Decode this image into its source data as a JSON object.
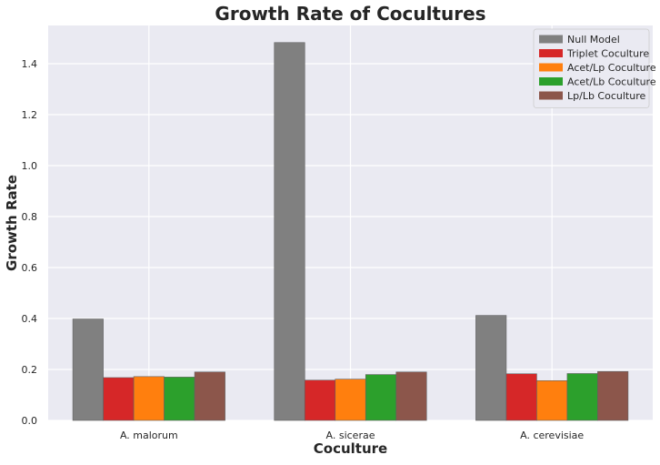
{
  "chart_data": {
    "type": "bar",
    "title": "Growth Rate of Cocultures",
    "xlabel": "Coculture",
    "ylabel": "Growth Rate",
    "categories": [
      "A. malorum",
      "A. sicerae",
      "A. cerevisiae"
    ],
    "ylim": [
      0,
      1.55
    ],
    "yticks": [
      0.0,
      0.2,
      0.4,
      0.6,
      0.8,
      1.0,
      1.2,
      1.4
    ],
    "ytick_labels": [
      "0.0",
      "0.2",
      "0.4",
      "0.6",
      "0.8",
      "1.0",
      "1.2",
      "1.4"
    ],
    "grid": true,
    "legend_position": "top-right",
    "series": [
      {
        "name": "Null Model",
        "color": "#808080",
        "values": [
          0.398,
          1.483,
          0.412
        ]
      },
      {
        "name": "Triplet Coculture",
        "color": "#d62728",
        "values": [
          0.168,
          0.158,
          0.183
        ]
      },
      {
        "name": "Acet/Lp Coculture",
        "color": "#ff7f0e",
        "values": [
          0.172,
          0.162,
          0.156
        ]
      },
      {
        "name": "Acet/Lb Coculture",
        "color": "#2ca02c",
        "values": [
          0.17,
          0.18,
          0.184
        ]
      },
      {
        "name": "Lp/Lb Coculture",
        "color": "#8c564b",
        "values": [
          0.19,
          0.19,
          0.192
        ]
      }
    ]
  },
  "colors": {
    "plot_background": "#eaeaf2",
    "grid": "#ffffff"
  }
}
